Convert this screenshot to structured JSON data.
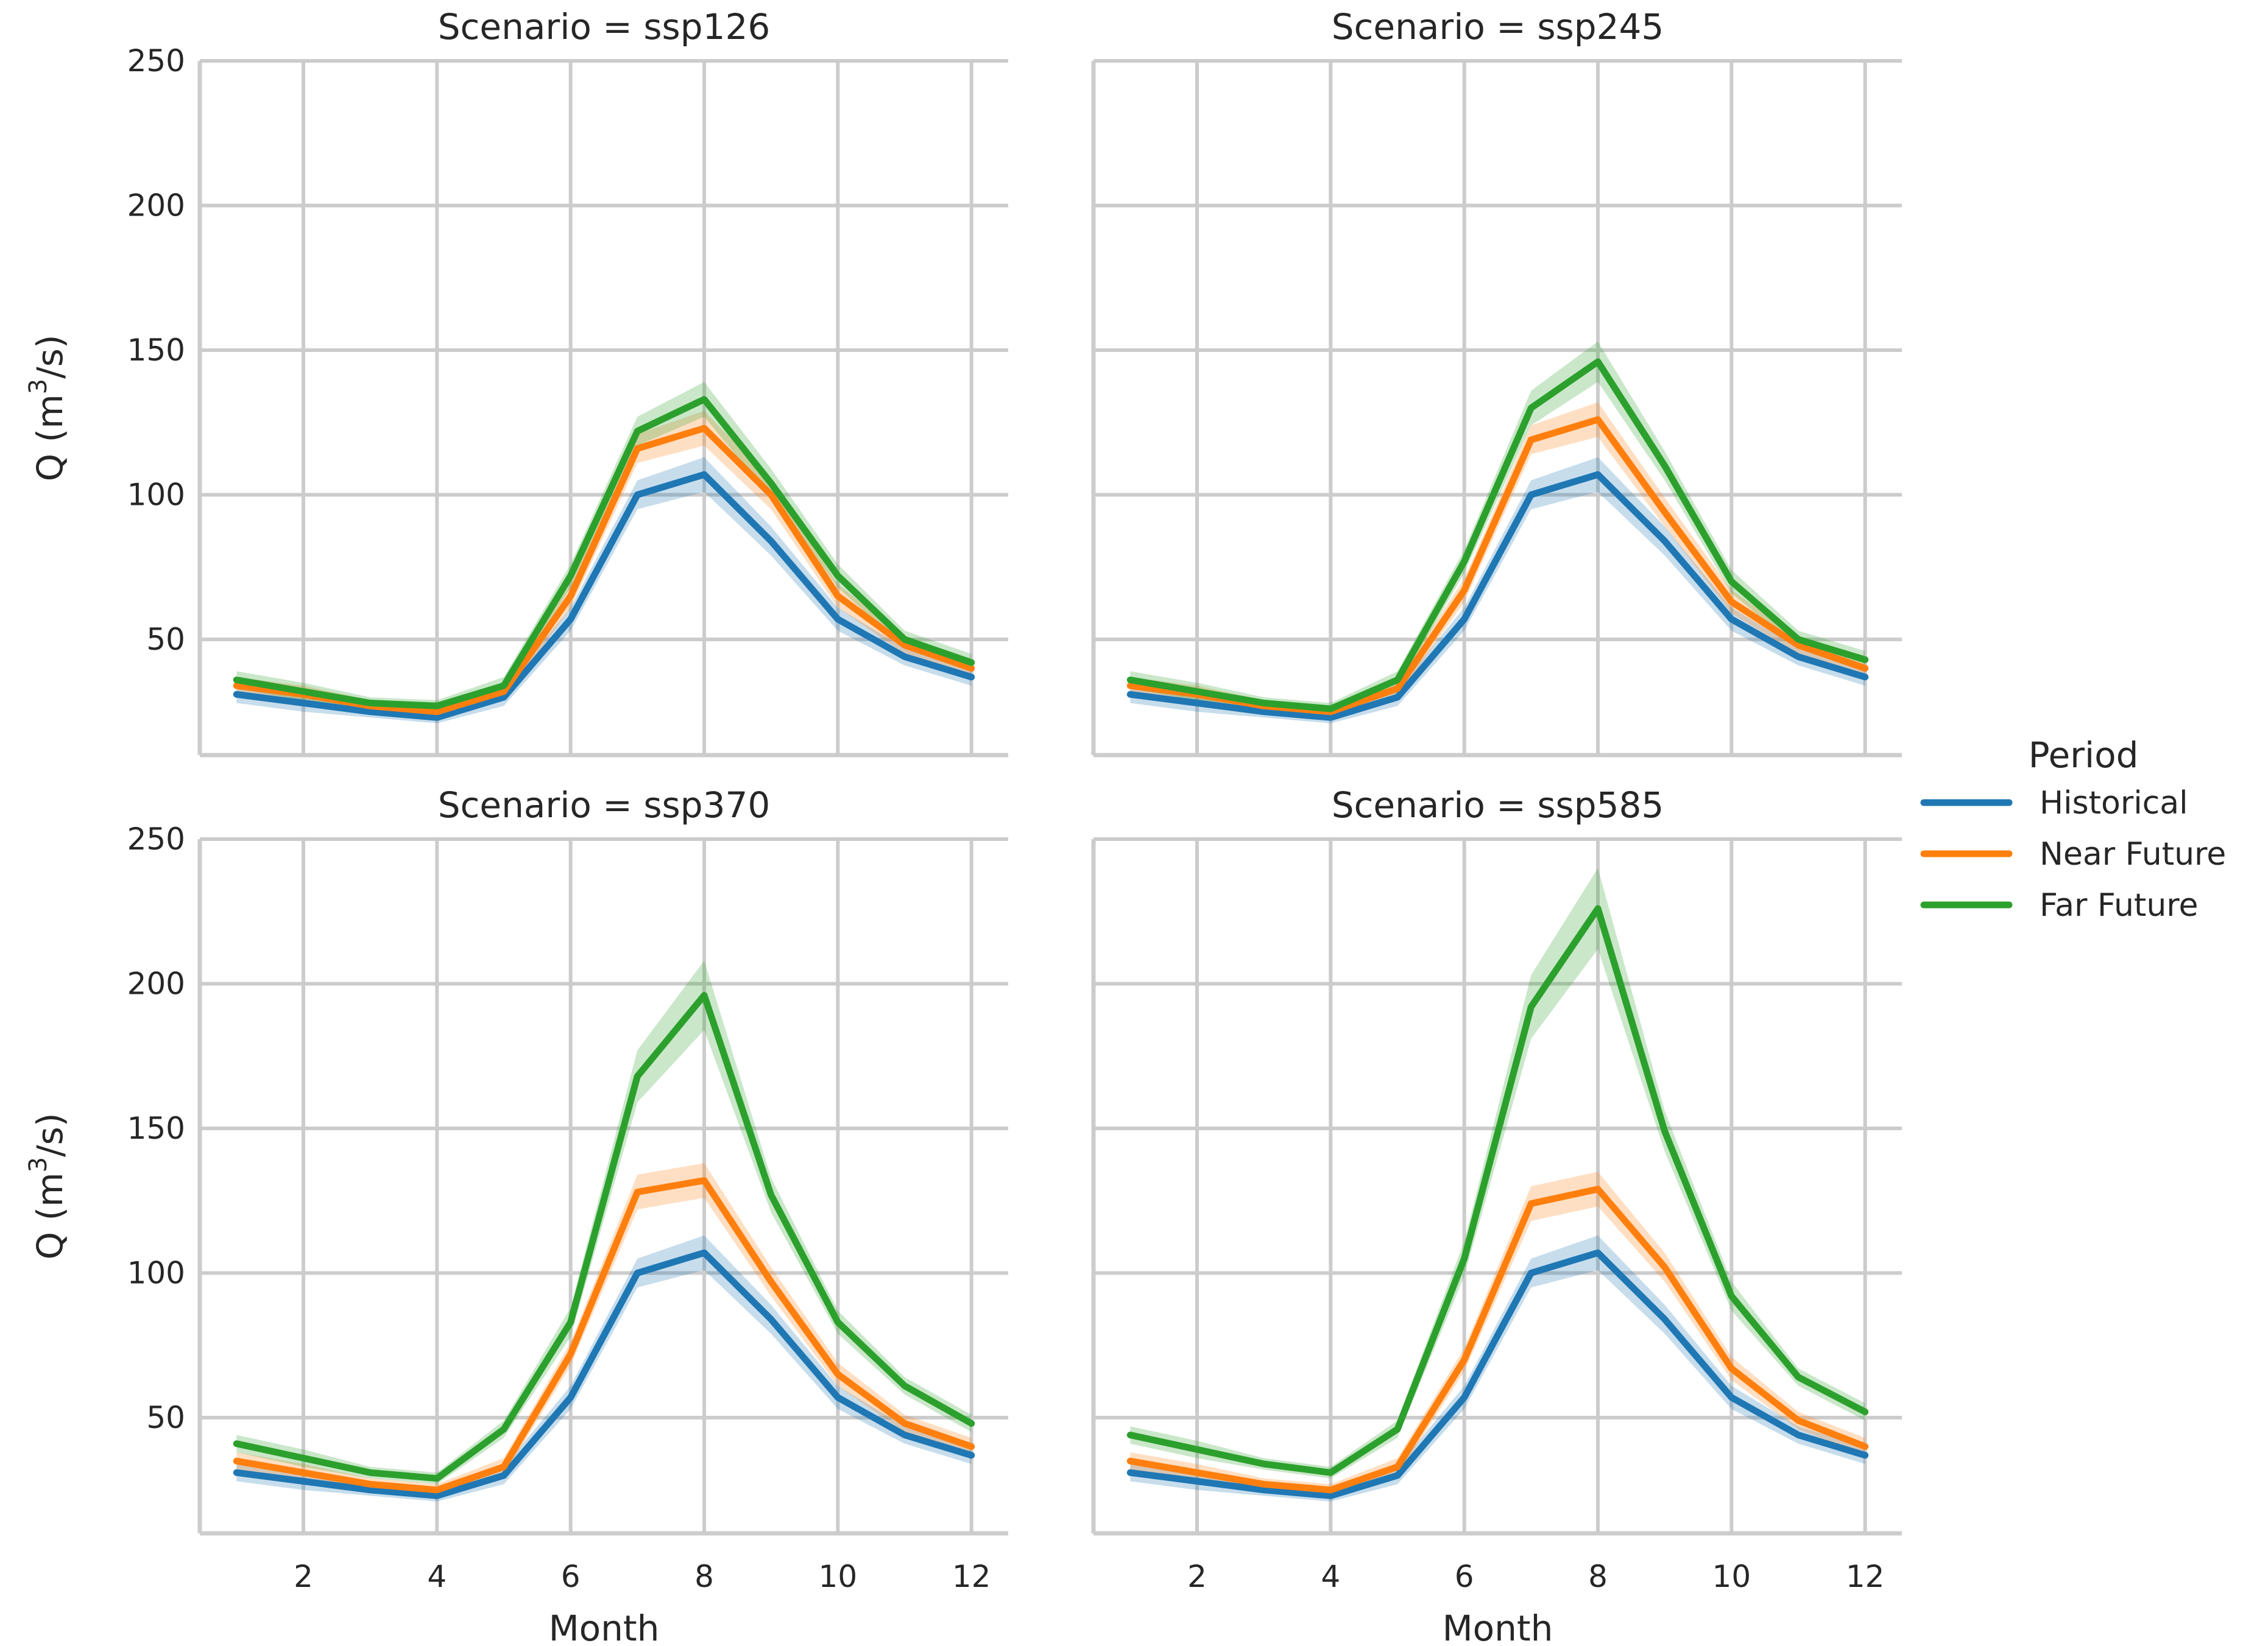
{
  "chart_data": {
    "type": "line",
    "facet_title_prefix": "Scenario = ",
    "x": [
      1,
      2,
      3,
      4,
      5,
      6,
      7,
      8,
      9,
      10,
      11,
      12
    ],
    "xlabel": "Month",
    "ylabel": "Q (m",
    "ylabel_sup": "3",
    "ylabel_end": "/s)",
    "xlim": [
      0.45,
      12.55
    ],
    "ylim": [
      10,
      250
    ],
    "xticks": [
      2,
      4,
      6,
      8,
      10,
      12
    ],
    "yticks": [
      50,
      100,
      150,
      200,
      250
    ],
    "grid": true,
    "legend": {
      "title": "Period",
      "placement": "right-center",
      "entries": [
        "Historical",
        "Near Future",
        "Far Future"
      ]
    },
    "colors": {
      "Historical": "#1f77b4",
      "Near Future": "#ff7f0e",
      "Far Future": "#2ca02c"
    },
    "panels": [
      {
        "scenario": "ssp126",
        "series": [
          {
            "name": "Historical",
            "values": [
              31,
              28,
              25,
              23,
              30,
              57,
              100,
              107,
              84,
              57,
              44,
              37
            ],
            "ci": [
              3,
              3,
              2,
              2,
              3,
              4,
              5,
              6,
              5,
              4,
              3,
              3
            ]
          },
          {
            "name": "Near Future",
            "values": [
              34,
              31,
              27,
              25,
              32,
              65,
              116,
              123,
              100,
              65,
              48,
              40
            ],
            "ci": [
              3,
              3,
              2,
              2,
              3,
              4,
              5,
              6,
              5,
              4,
              3,
              3
            ]
          },
          {
            "name": "Far Future",
            "values": [
              36,
              32,
              28,
              27,
              34,
              72,
              122,
              133,
              104,
              72,
              50,
              42
            ],
            "ci": [
              3,
              3,
              2,
              2,
              3,
              4,
              5,
              6,
              5,
              4,
              3,
              3
            ]
          }
        ]
      },
      {
        "scenario": "ssp245",
        "series": [
          {
            "name": "Historical",
            "values": [
              31,
              28,
              25,
              23,
              30,
              57,
              100,
              107,
              84,
              57,
              44,
              37
            ],
            "ci": [
              3,
              3,
              2,
              2,
              3,
              4,
              5,
              6,
              5,
              4,
              3,
              3
            ]
          },
          {
            "name": "Near Future",
            "values": [
              34,
              31,
              27,
              25,
              33,
              67,
              119,
              126,
              94,
              63,
              48,
              40
            ],
            "ci": [
              3,
              3,
              2,
              2,
              3,
              4,
              5,
              6,
              5,
              4,
              3,
              3
            ]
          },
          {
            "name": "Far Future",
            "values": [
              36,
              32,
              28,
              26,
              36,
              77,
              130,
              146,
              110,
              70,
              50,
              43
            ],
            "ci": [
              3,
              3,
              2,
              2,
              3,
              4,
              6,
              7,
              5,
              4,
              3,
              3
            ]
          }
        ]
      },
      {
        "scenario": "ssp370",
        "series": [
          {
            "name": "Historical",
            "values": [
              31,
              28,
              25,
              23,
              30,
              57,
              100,
              107,
              84,
              57,
              44,
              37
            ],
            "ci": [
              3,
              3,
              2,
              2,
              3,
              4,
              5,
              6,
              5,
              4,
              3,
              3
            ]
          },
          {
            "name": "Near Future",
            "values": [
              35,
              31,
              27,
              25,
              33,
              72,
              128,
              132,
              97,
              65,
              48,
              40
            ],
            "ci": [
              3,
              3,
              2,
              2,
              3,
              4,
              6,
              6,
              5,
              4,
              3,
              3
            ]
          },
          {
            "name": "Far Future",
            "values": [
              41,
              36,
              31,
              29,
              46,
              83,
              168,
              196,
              127,
              83,
              61,
              48
            ],
            "ci": [
              3,
              3,
              2,
              2,
              3,
              5,
              9,
              12,
              6,
              4,
              3,
              3
            ]
          }
        ]
      },
      {
        "scenario": "ssp585",
        "series": [
          {
            "name": "Historical",
            "values": [
              31,
              28,
              25,
              23,
              30,
              57,
              100,
              107,
              84,
              57,
              44,
              37
            ],
            "ci": [
              3,
              3,
              2,
              2,
              3,
              4,
              5,
              6,
              5,
              4,
              3,
              3
            ]
          },
          {
            "name": "Near Future",
            "values": [
              35,
              31,
              27,
              25,
              33,
              70,
              124,
              129,
              102,
              67,
              49,
              40
            ],
            "ci": [
              3,
              3,
              2,
              2,
              3,
              4,
              6,
              6,
              5,
              4,
              3,
              3
            ]
          },
          {
            "name": "Far Future",
            "values": [
              44,
              39,
              34,
              31,
              46,
              105,
              192,
              226,
              149,
              92,
              64,
              52
            ],
            "ci": [
              3,
              3,
              2,
              2,
              3,
              6,
              11,
              14,
              7,
              5,
              3,
              3
            ]
          }
        ]
      }
    ]
  }
}
